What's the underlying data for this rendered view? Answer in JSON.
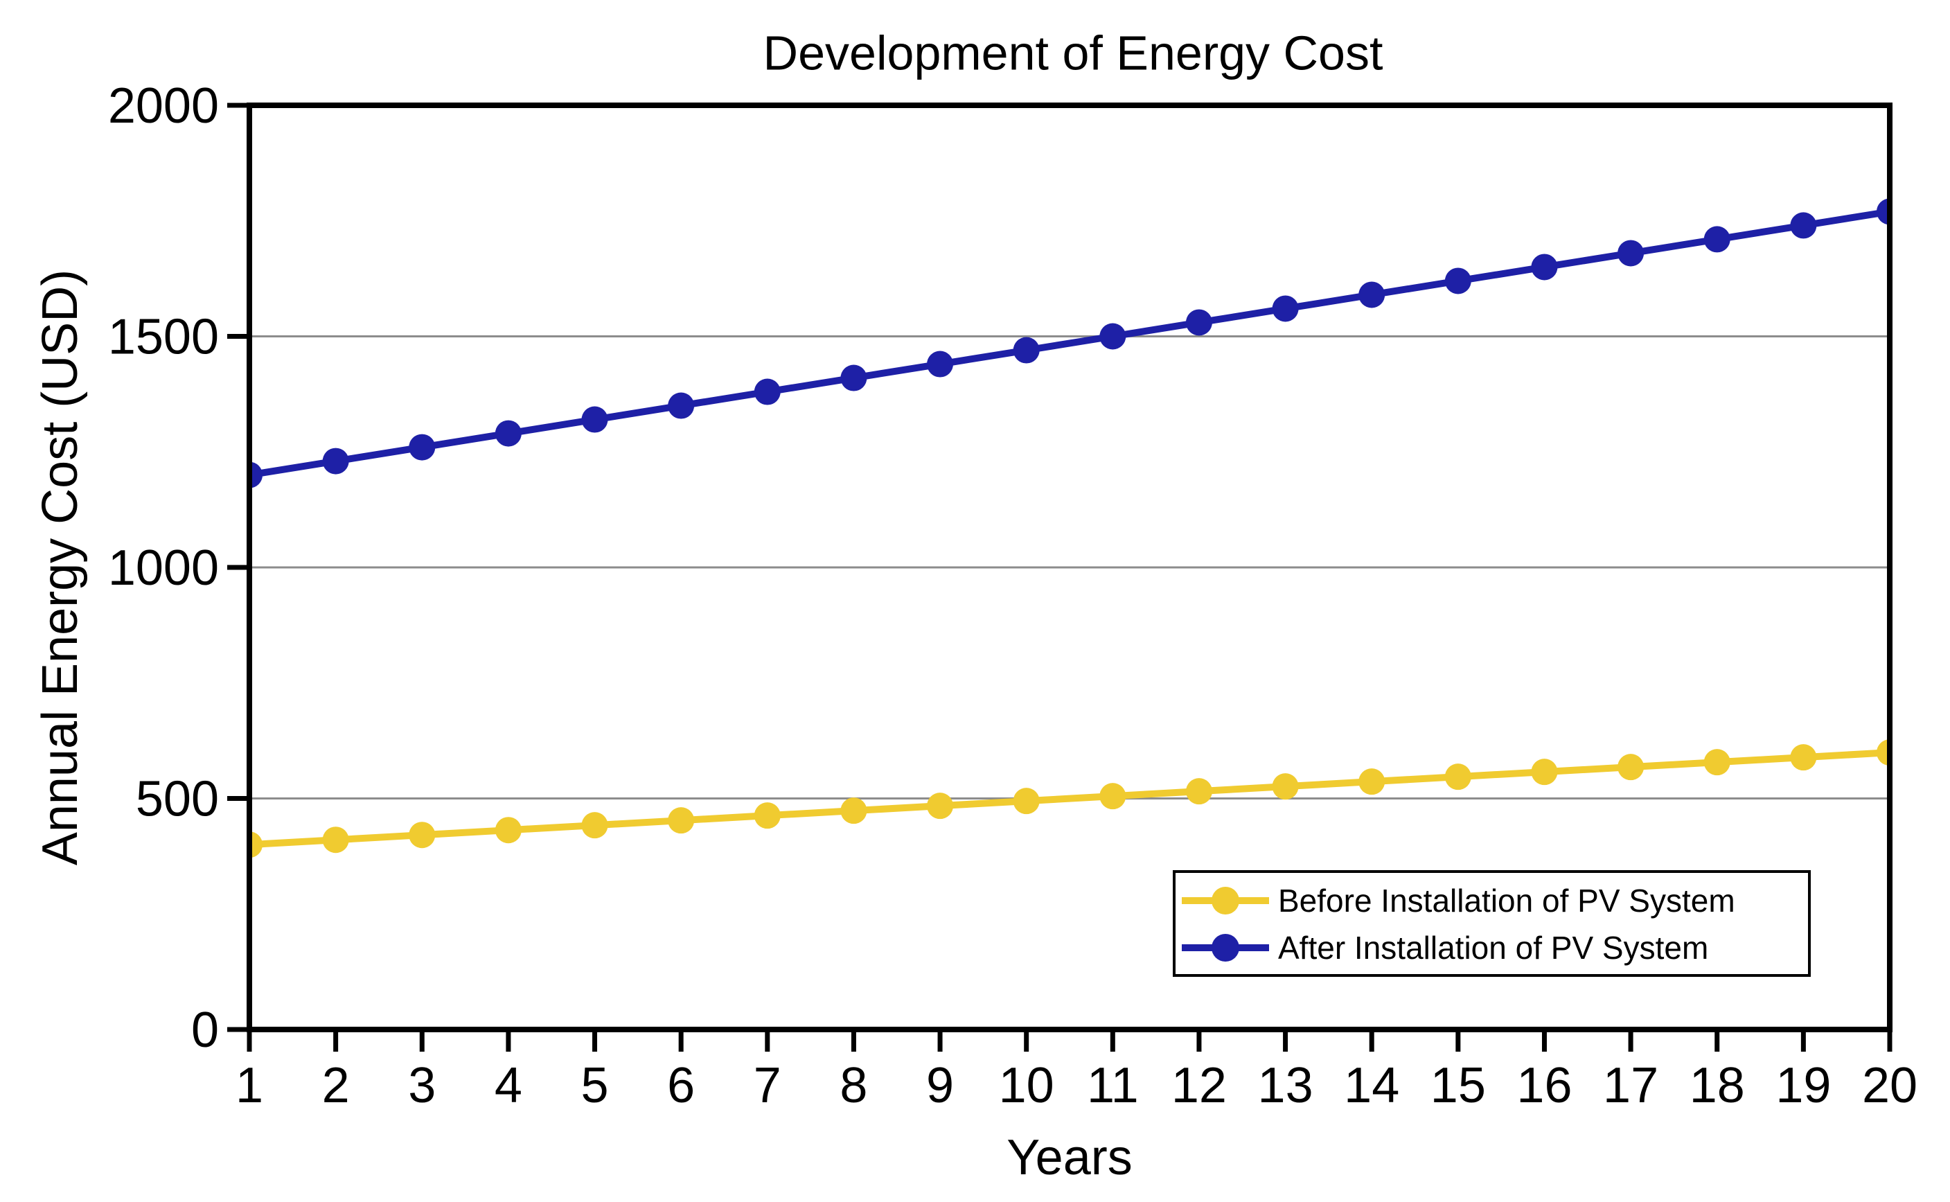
{
  "title": "Development of Energy Cost",
  "chart_data": {
    "type": "line",
    "title": "Development of Energy Cost",
    "xlabel": "Years",
    "ylabel": "Annual Energy Cost (USD)",
    "x": [
      1,
      2,
      3,
      4,
      5,
      6,
      7,
      8,
      9,
      10,
      11,
      12,
      13,
      14,
      15,
      16,
      17,
      18,
      19,
      20
    ],
    "xlim": [
      1,
      20
    ],
    "ylim": [
      0,
      2000
    ],
    "y_ticks": [
      0,
      500,
      1000,
      1500,
      2000
    ],
    "grid_lines_y": [
      500,
      1000,
      1500
    ],
    "grid": "horizontal",
    "legend_position": "lower right",
    "series": [
      {
        "id": "before",
        "name": "Before Installation of PV System",
        "color": "#F0CB30",
        "values": [
          400,
          410.5,
          421,
          431.5,
          442,
          452.5,
          463,
          473.5,
          484,
          494.5,
          505,
          515.5,
          526,
          536.5,
          547,
          557.5,
          568,
          578.5,
          589,
          599.5
        ]
      },
      {
        "id": "after",
        "name": "After Installation of PV System",
        "color": "#1E20A6",
        "values": [
          1200,
          1230,
          1260,
          1290,
          1320,
          1350,
          1380,
          1410,
          1440,
          1470,
          1500,
          1530,
          1560,
          1590,
          1620,
          1650,
          1680,
          1710,
          1740,
          1770
        ]
      }
    ]
  },
  "colors": {
    "background": "#FFFFFF",
    "axis": "#000000",
    "grid": "#8C8C8C",
    "before_series": "#F0CB30",
    "after_series": "#1E20A6"
  }
}
